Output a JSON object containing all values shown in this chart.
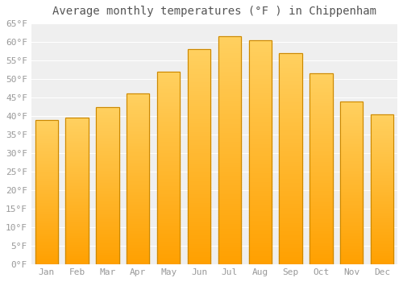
{
  "title": "Average monthly temperatures (°F ) in Chippenham",
  "months": [
    "Jan",
    "Feb",
    "Mar",
    "Apr",
    "May",
    "Jun",
    "Jul",
    "Aug",
    "Sep",
    "Oct",
    "Nov",
    "Dec"
  ],
  "values": [
    39,
    39.5,
    42.5,
    46,
    52,
    58,
    61.5,
    60.5,
    57,
    51.5,
    44,
    40.5
  ],
  "bar_color_top": "#FFD060",
  "bar_color_bottom": "#FFA000",
  "bar_edge_color": "#CC8800",
  "plot_bg_color": "#EFEFEF",
  "fig_bg_color": "#FFFFFF",
  "grid_color": "#FFFFFF",
  "text_color": "#999999",
  "title_color": "#555555",
  "ylim": [
    0,
    65
  ],
  "yticks": [
    0,
    5,
    10,
    15,
    20,
    25,
    30,
    35,
    40,
    45,
    50,
    55,
    60,
    65
  ],
  "ylabel_suffix": "°F",
  "title_fontsize": 10,
  "tick_fontsize": 8,
  "bar_width": 0.75
}
